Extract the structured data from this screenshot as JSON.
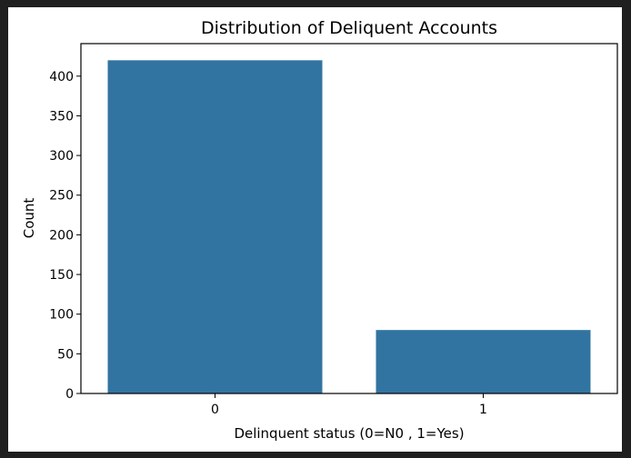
{
  "chart_data": {
    "type": "bar",
    "title": "Distribution of Deliquent Accounts",
    "xlabel": "Delinquent status (0=N0 , 1=Yes)",
    "ylabel": "Count",
    "categories": [
      "0",
      "1"
    ],
    "values": [
      420,
      80
    ],
    "ylim": [
      0,
      441
    ],
    "yticks": [
      0,
      50,
      100,
      150,
      200,
      250,
      300,
      350,
      400
    ],
    "grid": false,
    "bar_color": "#3274a1"
  }
}
